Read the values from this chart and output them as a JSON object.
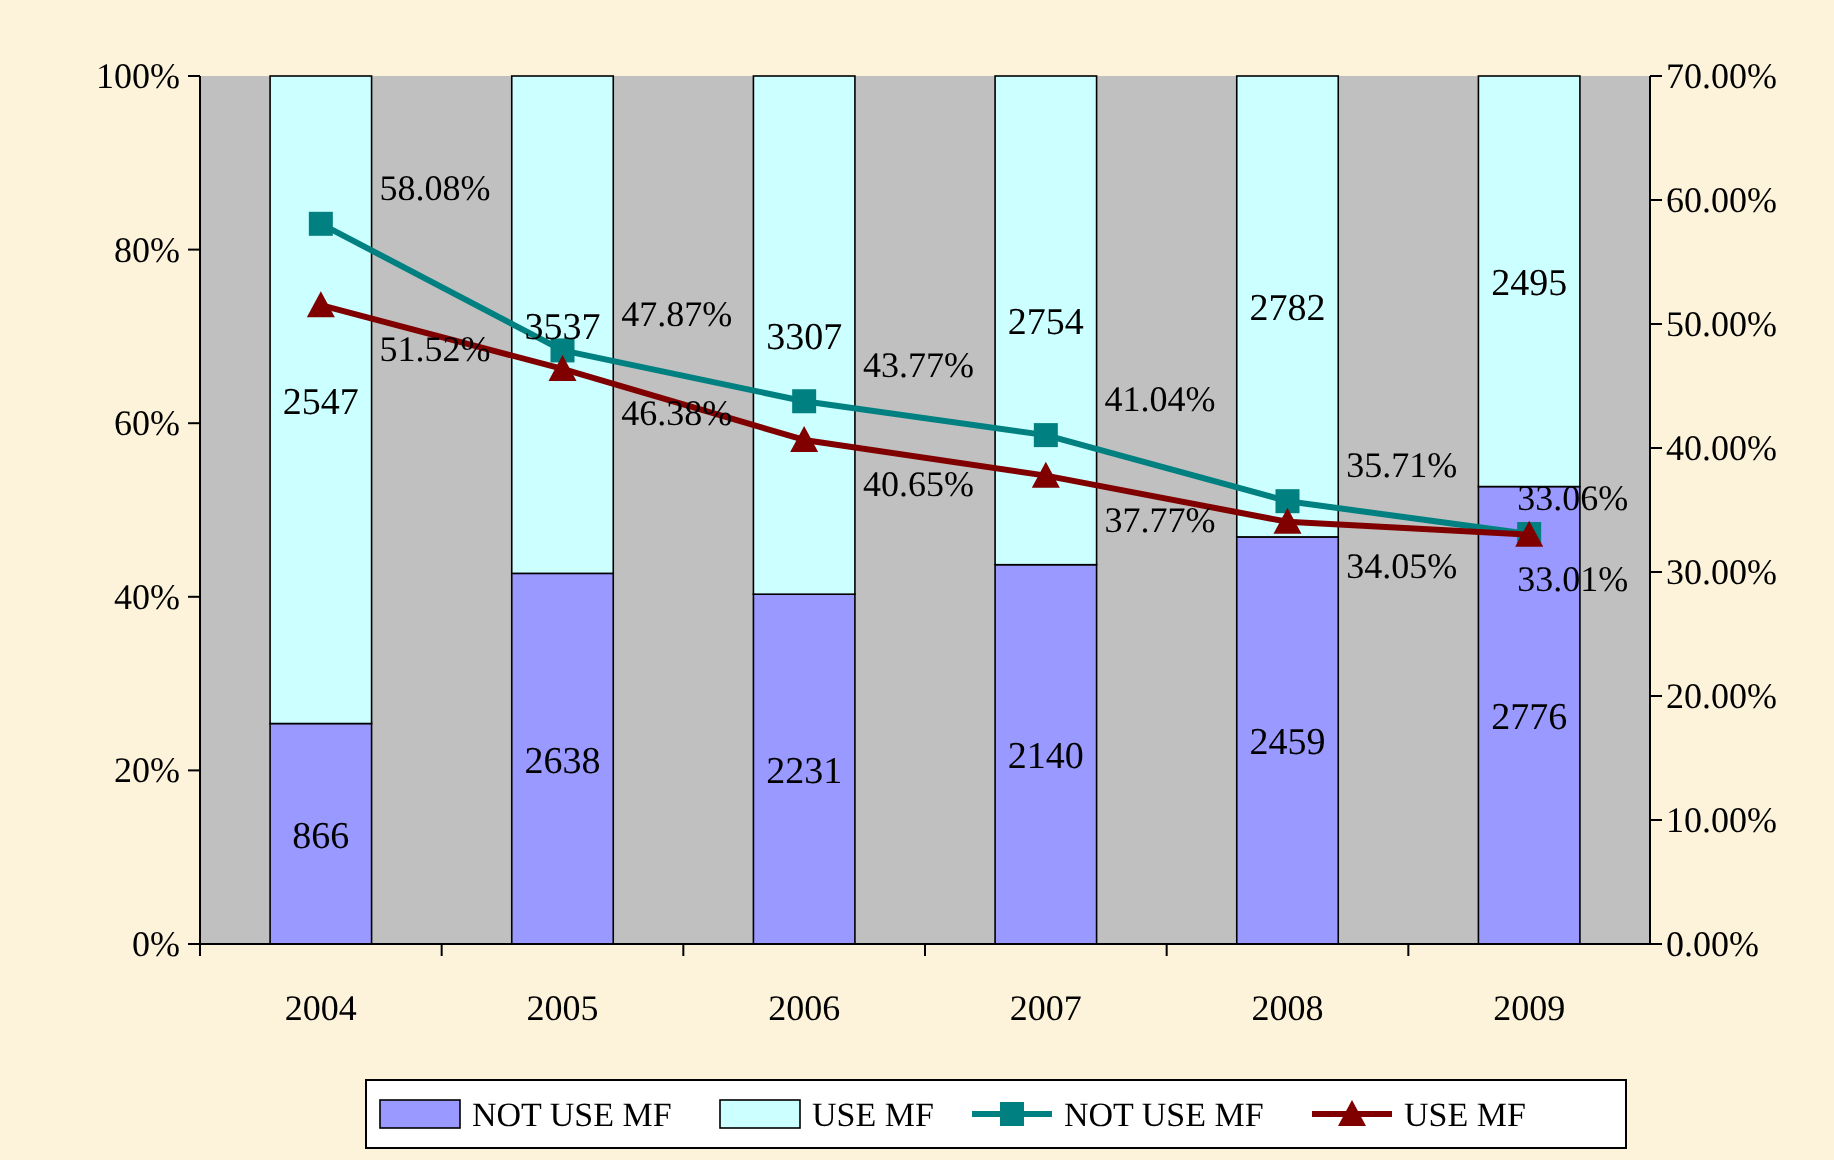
{
  "chart_data": {
    "type": "bar",
    "stacked": true,
    "categories": [
      "2004",
      "2005",
      "2006",
      "2007",
      "2008",
      "2009"
    ],
    "ylim": [
      0,
      100
    ],
    "yticks": [
      {
        "value": 0,
        "label": "0%"
      },
      {
        "value": 20,
        "label": "20%"
      },
      {
        "value": 40,
        "label": "40%"
      },
      {
        "value": 60,
        "label": "60%"
      },
      {
        "value": 80,
        "label": "80%"
      },
      {
        "value": 100,
        "label": "100%"
      }
    ],
    "y2lim": [
      0,
      70
    ],
    "y2ticks": [
      {
        "value": 0,
        "label": "0.00%"
      },
      {
        "value": 10,
        "label": "10.00%"
      },
      {
        "value": 20,
        "label": "20.00%"
      },
      {
        "value": 30,
        "label": "30.00%"
      },
      {
        "value": 40,
        "label": "40.00%"
      },
      {
        "value": 50,
        "label": "50.00%"
      },
      {
        "value": 60,
        "label": "60.00%"
      },
      {
        "value": 70,
        "label": "70.00%"
      }
    ],
    "legend": "bottom",
    "series": [
      {
        "name": "NOT USE MF",
        "color": "#9999ff",
        "values": [
          25.4,
          42.7,
          40.3,
          43.7,
          46.9,
          52.7
        ]
      },
      {
        "name": "USE MF",
        "color": "#ccffff",
        "values": [
          74.6,
          57.3,
          59.7,
          56.3,
          53.1,
          47.3
        ]
      },
      {
        "name": "NOT USE MF",
        "type": "line",
        "axis": "y2",
        "color": "#008080",
        "marker": "square",
        "values": [
          58.08,
          47.87,
          43.77,
          41.04,
          35.71,
          33.06
        ],
        "value_labels": [
          "58.08%",
          "47.87%",
          "43.77%",
          "41.04%",
          "35.71%",
          "33.06%"
        ]
      },
      {
        "name": "USE MF",
        "type": "line",
        "axis": "y2",
        "color": "#800000",
        "marker": "triangle",
        "values": [
          51.52,
          46.38,
          40.65,
          37.77,
          34.05,
          33.01
        ],
        "value_labels": [
          "51.52%",
          "46.38%",
          "40.65%",
          "37.77%",
          "34.05%",
          "33.01%"
        ]
      }
    ],
    "annotations": [
      "866",
      "2638",
      "2231",
      "2140",
      "2459",
      "2776",
      "2547",
      "3537",
      "3307",
      "2754",
      "2782",
      "2495"
    ]
  }
}
